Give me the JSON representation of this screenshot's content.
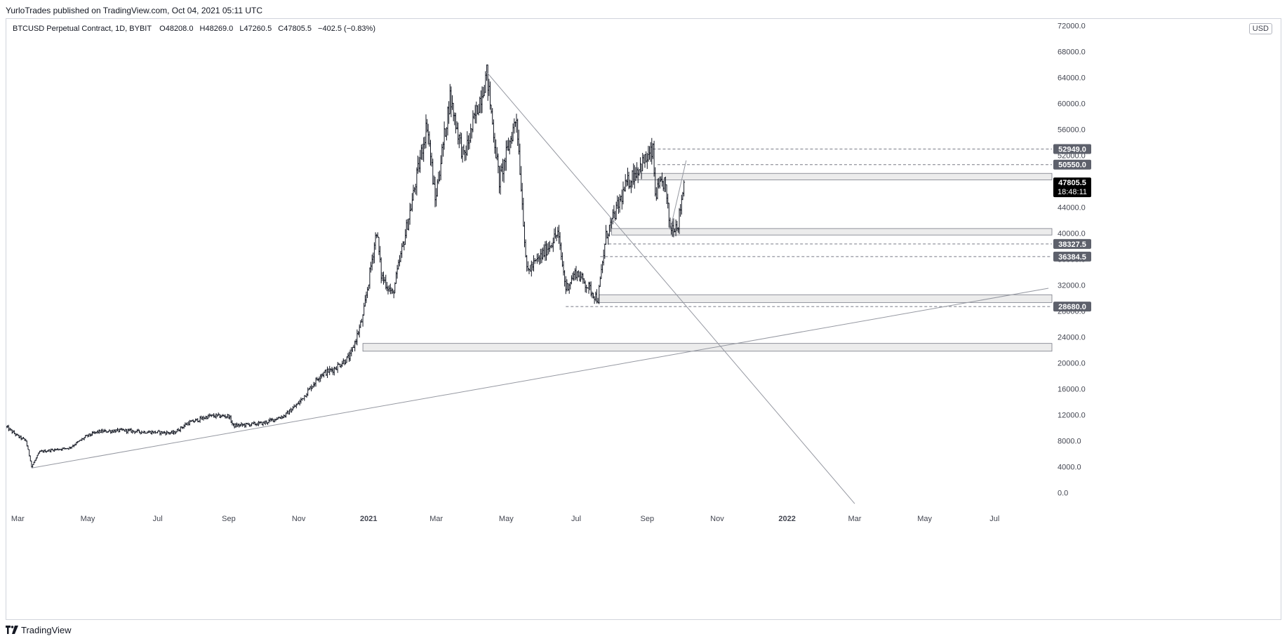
{
  "header": {
    "published_text": "YurloTrades published on TradingView.com, Oct 04, 2021 05:11 UTC"
  },
  "legend": {
    "symbol": "BTCUSD Perpetual Contract, 1D, BYBIT",
    "open_label": "O",
    "open": "48208.0",
    "high_label": "H",
    "high": "48269.0",
    "low_label": "L",
    "low": "47260.5",
    "close_label": "C",
    "close": "47805.5",
    "change": "−402.5 (−0.83%)"
  },
  "currency": "USD",
  "footer": {
    "brand": "TradingView",
    "logo_icon": "tradingview-logo-icon"
  },
  "colors": {
    "candle": "#131722",
    "trendline": "#9598a1",
    "zone_fill": "#ececec",
    "zone_border": "#787b86",
    "price_tag_bg": "#5d606b",
    "last_price_bg": "#000000"
  },
  "chart_data": {
    "type": "ohlc",
    "symbol": "BTCUSD Perpetual Contract",
    "interval": "1D",
    "x_axis": {
      "labels": [
        "Mar",
        "May",
        "Jul",
        "Sep",
        "Nov",
        "2021",
        "Mar",
        "May",
        "Jul",
        "Sep",
        "Nov",
        "2022",
        "Mar",
        "May",
        "Jul"
      ],
      "label_dates": [
        "2020-03-01",
        "2020-05-01",
        "2020-07-01",
        "2020-09-01",
        "2020-11-01",
        "2021-01-01",
        "2021-03-01",
        "2021-05-01",
        "2021-07-01",
        "2021-09-01",
        "2021-11-01",
        "2022-01-01",
        "2022-03-01",
        "2022-05-01",
        "2022-07-01"
      ],
      "range": [
        "2020-02-20",
        "2022-08-20"
      ]
    },
    "y_axis": {
      "ticks": [
        0,
        4000,
        8000,
        12000,
        16000,
        20000,
        24000,
        28000,
        32000,
        36000,
        40000,
        44000,
        48000,
        52000,
        56000,
        60000,
        64000,
        68000,
        72000
      ],
      "tick_labels": [
        "0.0",
        "4000.0",
        "8000.0",
        "12000.0",
        "16000.0",
        "20000.0",
        "24000.0",
        "28000.0",
        "32000.0",
        "36000.0",
        "40000.0",
        "44000.0",
        "48000.0",
        "52000.0",
        "56000.0",
        "60000.0",
        "64000.0",
        "68000.0",
        "72000.0"
      ],
      "range": [
        -2000,
        73000
      ],
      "side": "right"
    },
    "price_path": [
      [
        "2020-02-20",
        10100
      ],
      [
        "2020-03-01",
        8700
      ],
      [
        "2020-03-08",
        8000
      ],
      [
        "2020-03-12",
        5000
      ],
      [
        "2020-03-13",
        4000
      ],
      [
        "2020-03-20",
        6300
      ],
      [
        "2020-04-01",
        6600
      ],
      [
        "2020-04-15",
        6900
      ],
      [
        "2020-04-30",
        8700
      ],
      [
        "2020-05-10",
        9400
      ],
      [
        "2020-06-01",
        9600
      ],
      [
        "2020-06-15",
        9400
      ],
      [
        "2020-07-15",
        9200
      ],
      [
        "2020-07-27",
        10700
      ],
      [
        "2020-08-15",
        11800
      ],
      [
        "2020-09-01",
        11800
      ],
      [
        "2020-09-05",
        10300
      ],
      [
        "2020-10-01",
        10700
      ],
      [
        "2020-10-20",
        11900
      ],
      [
        "2020-11-01",
        13800
      ],
      [
        "2020-11-20",
        18200
      ],
      [
        "2020-12-01",
        19000
      ],
      [
        "2020-12-16",
        21000
      ],
      [
        "2020-12-27",
        27000
      ],
      [
        "2021-01-08",
        40500
      ],
      [
        "2021-01-12",
        33500
      ],
      [
        "2021-01-22",
        30500
      ],
      [
        "2021-02-08",
        45000
      ],
      [
        "2021-02-21",
        57000
      ],
      [
        "2021-02-28",
        45000
      ],
      [
        "2021-03-13",
        61000
      ],
      [
        "2021-03-25",
        51500
      ],
      [
        "2021-04-14",
        64500
      ],
      [
        "2021-04-25",
        48000
      ],
      [
        "2021-05-10",
        58000
      ],
      [
        "2021-05-19",
        34000
      ],
      [
        "2021-06-01",
        36500
      ],
      [
        "2021-06-15",
        40000
      ],
      [
        "2021-06-22",
        31500
      ],
      [
        "2021-07-01",
        34000
      ],
      [
        "2021-07-20",
        29800
      ],
      [
        "2021-07-27",
        39500
      ],
      [
        "2021-08-14",
        47500
      ],
      [
        "2021-08-23",
        49800
      ],
      [
        "2021-09-06",
        52500
      ],
      [
        "2021-09-08",
        46000
      ],
      [
        "2021-09-16",
        48000
      ],
      [
        "2021-09-21",
        40800
      ],
      [
        "2021-09-28",
        41500
      ],
      [
        "2021-10-03",
        47805
      ]
    ],
    "last_price": 47805.5,
    "last_price_countdown": "18:48:11",
    "horizontal_levels": [
      {
        "label": "52949.0",
        "value": 52949,
        "style": "dashed",
        "from": "2021-09-06"
      },
      {
        "label": "50550.0",
        "value": 50550,
        "style": "dashed",
        "from": "2021-09-10"
      },
      {
        "label": "38327.5",
        "value": 38327.5,
        "style": "dashed",
        "from": "2021-07-25"
      },
      {
        "label": "36384.5",
        "value": 36384.5,
        "style": "dashed",
        "from": "2021-07-22"
      },
      {
        "label": "28680.0",
        "value": 28680,
        "style": "dashed",
        "from": "2021-06-22"
      }
    ],
    "zones": [
      {
        "low": 48200,
        "high": 49200,
        "from": "2021-08-20"
      },
      {
        "low": 39700,
        "high": 40700,
        "from": "2021-08-01"
      },
      {
        "low": 29300,
        "high": 30500,
        "from": "2021-07-21"
      },
      {
        "low": 21800,
        "high": 23000,
        "from": "2020-12-27"
      }
    ],
    "trendlines": [
      {
        "from": [
          "2020-03-13",
          3800
        ],
        "to": [
          "2022-08-17",
          31500
        ]
      },
      {
        "from": [
          "2021-04-14",
          64800
        ],
        "to": [
          "2022-03-01",
          -1700
        ]
      },
      {
        "from": [
          "2021-09-21",
          40500
        ],
        "to": [
          "2021-10-05",
          51200
        ]
      }
    ]
  }
}
